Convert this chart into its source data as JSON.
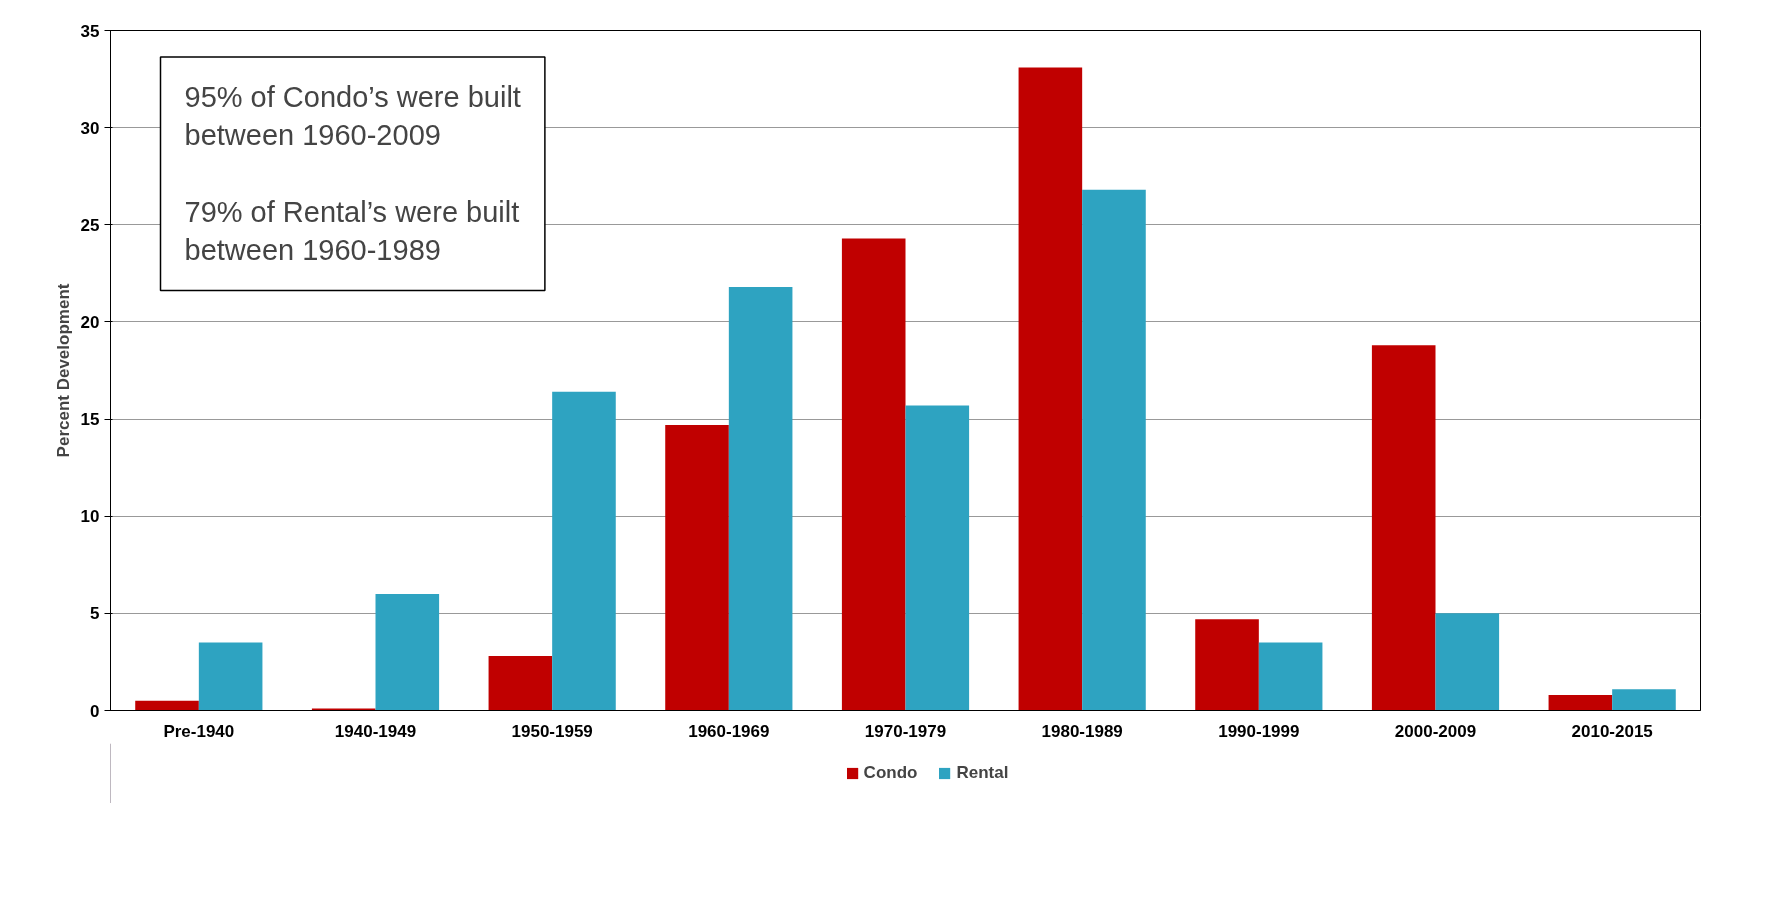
{
  "chart_data": {
    "type": "bar",
    "ylabel": "Percent Development",
    "categories": [
      "Pre-1940",
      "1940-1949",
      "1950-1959",
      "1960-1969",
      "1970-1979",
      "1980-1989",
      "1990-1999",
      "2000-2009",
      "2010-2015"
    ],
    "series": [
      {
        "name": "Condo",
        "color": "#c00000",
        "values": [
          0.5,
          0.1,
          2.8,
          14.7,
          24.3,
          33.1,
          4.7,
          18.8,
          0.8
        ]
      },
      {
        "name": "Rental",
        "color": "#2ea3c1",
        "values": [
          3.5,
          6.0,
          16.4,
          21.8,
          15.7,
          26.8,
          3.5,
          5.0,
          1.1
        ]
      }
    ],
    "ylim": [
      0,
      35
    ],
    "yticks": [
      0,
      5,
      10,
      15,
      20,
      25,
      30,
      35
    ],
    "grid": "y",
    "legend": "bottom",
    "annotations": [
      "95% of Condo’s were built\nbetween 1960-2009",
      "79% of Rental’s were built\nbetween 1960-1989"
    ]
  }
}
